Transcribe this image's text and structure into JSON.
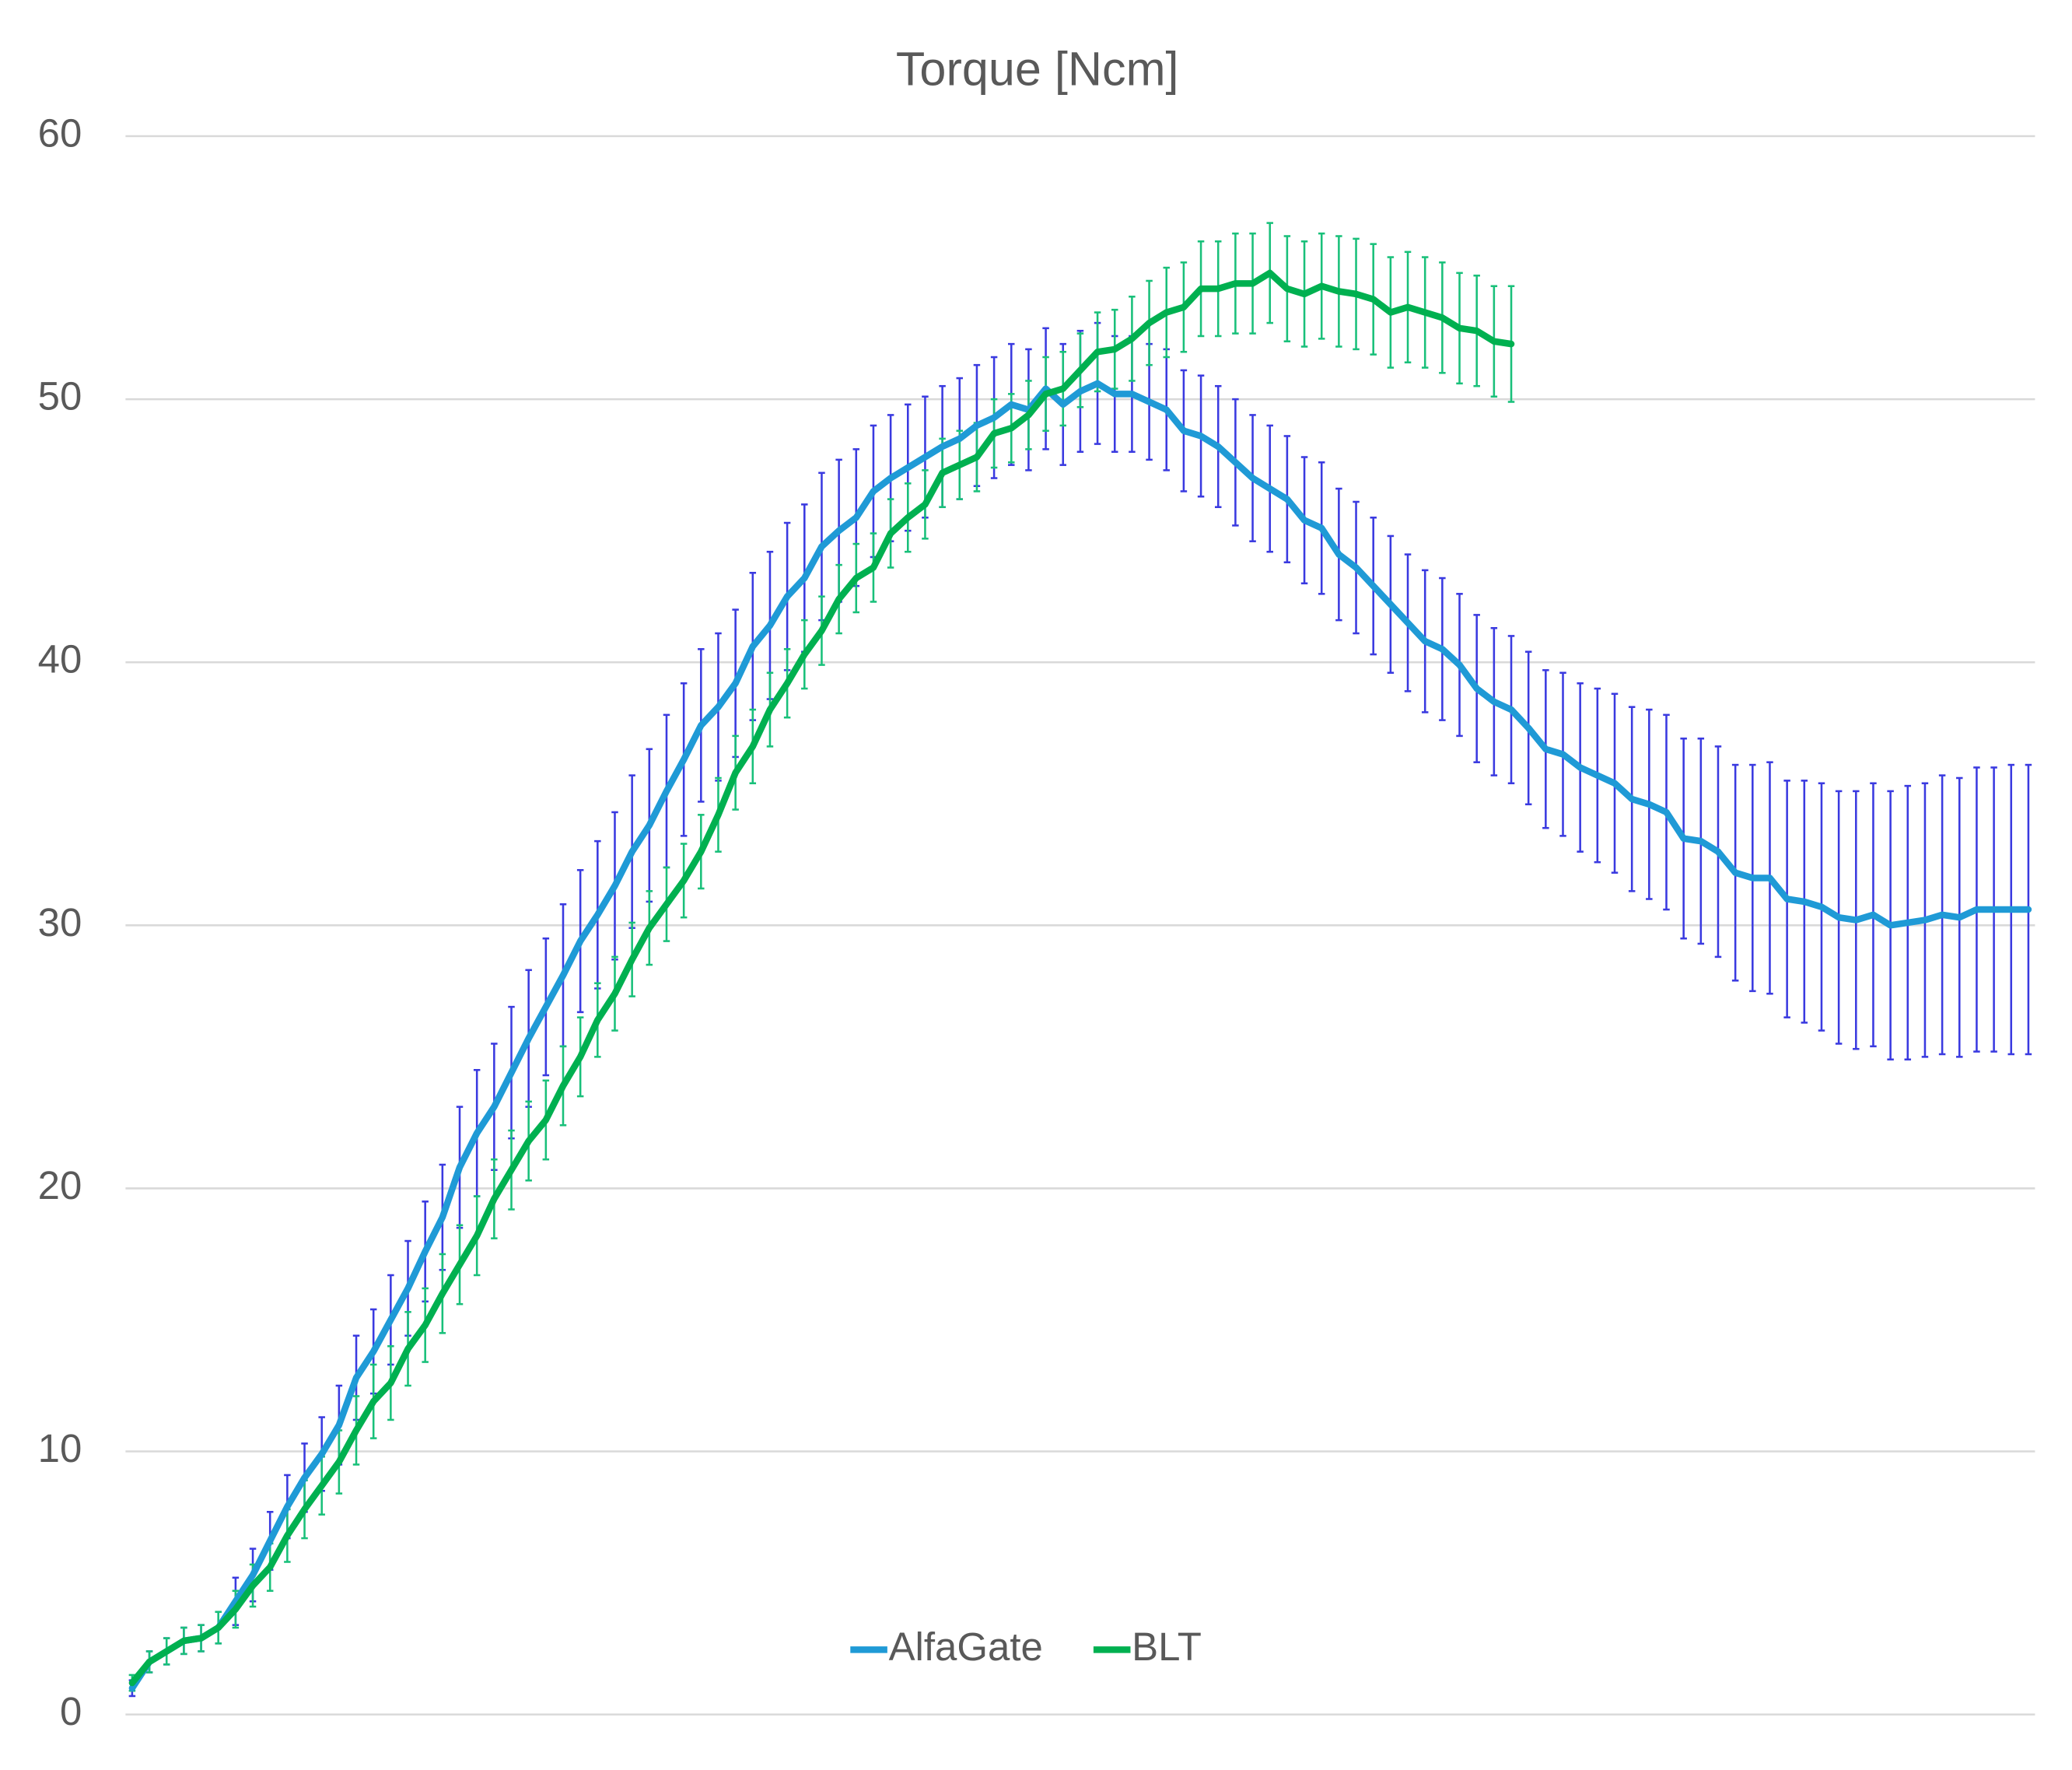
{
  "chart_data": {
    "type": "line",
    "title": "Torque [Ncm]",
    "ylim": [
      0,
      60
    ],
    "yticks": [
      0,
      10,
      20,
      30,
      40,
      50,
      60
    ],
    "grid": true,
    "legend": "bottom",
    "series": [
      {
        "name": "AlfaGate",
        "color": "#1f9ad6",
        "error_color": "#3a3ae0",
        "values": [
          1.0,
          2.0,
          2.4,
          2.8,
          2.9,
          3.3,
          4.3,
          5.3,
          6.6,
          7.9,
          9.0,
          9.9,
          11.0,
          12.8,
          13.8,
          15.0,
          16.2,
          17.6,
          18.9,
          20.8,
          22.1,
          23.1,
          24.4,
          25.7,
          26.9,
          28.1,
          29.4,
          30.4,
          31.5,
          32.8,
          33.8,
          35.1,
          36.3,
          37.6,
          38.3,
          39.2,
          40.6,
          41.4,
          42.5,
          43.2,
          44.4,
          45.0,
          45.5,
          46.5,
          47.0,
          47.4,
          47.8,
          48.2,
          48.5,
          49.0,
          49.3,
          49.8,
          49.6,
          50.4,
          49.8,
          50.3,
          50.6,
          50.2,
          50.2,
          49.9,
          49.6,
          48.8,
          48.6,
          48.2,
          47.6,
          47.0,
          46.6,
          46.2,
          45.4,
          45.1,
          44.1,
          43.6,
          42.9,
          42.2,
          41.5,
          40.8,
          40.5,
          39.9,
          39.0,
          38.5,
          38.2,
          37.5,
          36.7,
          36.5,
          36.0,
          35.7,
          35.4,
          34.8,
          34.6,
          34.3,
          33.3,
          33.2,
          32.8,
          32.0,
          31.8,
          31.8,
          31.0,
          30.9,
          30.7,
          30.3,
          30.2,
          30.4,
          30.0,
          30.1,
          30.2,
          30.4,
          30.3,
          30.6,
          30.6,
          30.6,
          30.6
        ],
        "errors": [
          0.3,
          0.4,
          0.5,
          0.5,
          0.5,
          0.6,
          0.9,
          1.0,
          1.1,
          1.2,
          1.3,
          1.4,
          1.5,
          1.6,
          1.6,
          1.7,
          1.8,
          1.9,
          2.0,
          2.3,
          2.4,
          2.4,
          2.5,
          2.6,
          2.6,
          2.7,
          2.7,
          2.8,
          2.8,
          2.9,
          2.9,
          2.9,
          2.9,
          2.9,
          2.8,
          2.8,
          2.8,
          2.8,
          2.8,
          2.8,
          2.8,
          2.7,
          2.6,
          2.5,
          2.4,
          2.4,
          2.3,
          2.3,
          2.3,
          2.3,
          2.3,
          2.3,
          2.3,
          2.3,
          2.3,
          2.3,
          2.3,
          2.2,
          2.2,
          2.2,
          2.3,
          2.3,
          2.3,
          2.3,
          2.4,
          2.4,
          2.4,
          2.4,
          2.4,
          2.5,
          2.5,
          2.5,
          2.6,
          2.6,
          2.6,
          2.7,
          2.7,
          2.7,
          2.8,
          2.8,
          2.8,
          2.9,
          3.0,
          3.1,
          3.2,
          3.3,
          3.4,
          3.5,
          3.6,
          3.7,
          3.8,
          3.9,
          4.0,
          4.1,
          4.3,
          4.4,
          4.5,
          4.6,
          4.7,
          4.8,
          4.9,
          5.0,
          5.1,
          5.2,
          5.2,
          5.3,
          5.3,
          5.4,
          5.4,
          5.5,
          5.5
        ]
      },
      {
        "name": "BLT",
        "color": "#00b050",
        "error_color": "#19c07a",
        "values": [
          1.2,
          2.0,
          2.4,
          2.8,
          2.9,
          3.3,
          4.0,
          4.9,
          5.6,
          6.8,
          7.8,
          8.7,
          9.6,
          10.8,
          11.9,
          12.6,
          13.9,
          14.8,
          16.0,
          17.1,
          18.2,
          19.6,
          20.7,
          21.8,
          22.6,
          23.9,
          25.0,
          26.4,
          27.4,
          28.7,
          29.9,
          30.8,
          31.7,
          32.8,
          34.2,
          35.8,
          36.8,
          38.2,
          39.2,
          40.3,
          41.2,
          42.4,
          43.2,
          43.6,
          44.9,
          45.5,
          46.0,
          47.2,
          47.5,
          47.8,
          48.7,
          48.9,
          49.4,
          50.2,
          50.4,
          51.1,
          51.8,
          51.9,
          52.3,
          52.9,
          53.3,
          53.5,
          54.2,
          54.2,
          54.4,
          54.4,
          54.8,
          54.2,
          54.0,
          54.3,
          54.1,
          54.0,
          53.8,
          53.3,
          53.5,
          53.3,
          53.1,
          52.7,
          52.6,
          52.2,
          52.1,
          null,
          null,
          null,
          null,
          null,
          null,
          null,
          null,
          null,
          null,
          null,
          null,
          null,
          null,
          null,
          null,
          null,
          null,
          null,
          null,
          null,
          null,
          null,
          null,
          null,
          null,
          null,
          null,
          null,
          null
        ],
        "errors": [
          0.3,
          0.4,
          0.5,
          0.5,
          0.5,
          0.6,
          0.7,
          0.8,
          0.9,
          1.0,
          1.1,
          1.1,
          1.2,
          1.3,
          1.4,
          1.4,
          1.4,
          1.4,
          1.5,
          1.5,
          1.5,
          1.5,
          1.5,
          1.5,
          1.5,
          1.5,
          1.5,
          1.4,
          1.4,
          1.4,
          1.4,
          1.4,
          1.4,
          1.4,
          1.4,
          1.4,
          1.4,
          1.4,
          1.3,
          1.3,
          1.3,
          1.3,
          1.3,
          1.3,
          1.3,
          1.3,
          1.3,
          1.3,
          1.3,
          1.3,
          1.3,
          1.3,
          1.3,
          1.4,
          1.4,
          1.4,
          1.5,
          1.5,
          1.6,
          1.6,
          1.7,
          1.7,
          1.8,
          1.8,
          1.9,
          1.9,
          1.9,
          2.0,
          2.0,
          2.0,
          2.1,
          2.1,
          2.1,
          2.1,
          2.1,
          2.1,
          2.1,
          2.1,
          2.1,
          2.1,
          2.2,
          null,
          null,
          null,
          null,
          null,
          null,
          null,
          null,
          null,
          null,
          null,
          null,
          null,
          null,
          null,
          null,
          null,
          null,
          null,
          null,
          null,
          null,
          null,
          null,
          null,
          null,
          null,
          null,
          null,
          null
        ]
      }
    ]
  }
}
